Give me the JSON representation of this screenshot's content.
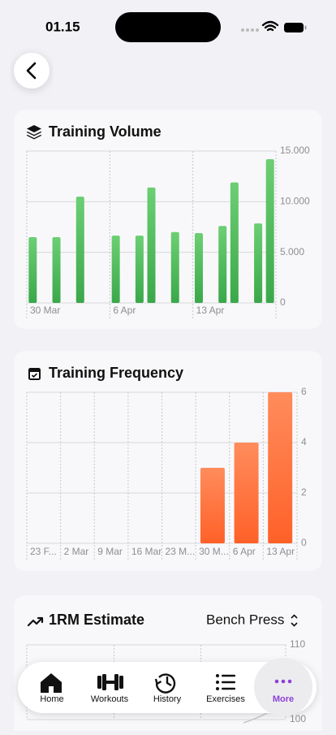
{
  "status_bar": {
    "time": "01.15"
  },
  "exercise_picker": {
    "label": "Bench Press"
  },
  "chart_data": [
    {
      "type": "bar",
      "title": "Training Volume",
      "color": "#4cb85a",
      "x": [
        "30 Mar",
        "1 Apr",
        "3 Apr",
        "6 Apr",
        "8 Apr",
        "9 Apr",
        "11 Apr",
        "13 Apr",
        "15 Apr",
        "16 Apr",
        "18 Apr",
        "19 Apr"
      ],
      "values": [
        6500,
        6500,
        10500,
        6650,
        6650,
        11400,
        7000,
        6900,
        7600,
        11900,
        7850,
        14200
      ],
      "xlim": [
        "30 Mar",
        "20 Apr"
      ],
      "xticks": [
        "30 Mar",
        "6 Apr",
        "13 Apr"
      ],
      "ylim": [
        0,
        15000
      ],
      "yticks": [
        0,
        {
          "value": 5000,
          "label": "5.000"
        },
        {
          "value": 10000,
          "label": "10.000"
        },
        {
          "value": 15000,
          "label": "15.000"
        }
      ],
      "grid": true
    },
    {
      "type": "bar",
      "title": "Training Frequency",
      "color": "#ff6a35",
      "categories": [
        "23 F...",
        "2 Mar",
        "9 Mar",
        "16 Mar",
        "23 M...",
        "30 M...",
        "6 Apr",
        "13 Apr"
      ],
      "values": [
        0,
        0,
        0,
        0,
        0,
        3,
        4,
        6
      ],
      "ylim": [
        0,
        6
      ],
      "yticks": [
        0,
        2,
        4,
        6
      ],
      "grid": true
    },
    {
      "type": "line",
      "title": "1RM Estimate",
      "ylim": [
        100,
        110
      ],
      "yticks": [
        100,
        110
      ],
      "grid": true
    }
  ],
  "tab_bar": {
    "items": [
      "Home",
      "Workouts",
      "History",
      "Exercises",
      "More"
    ],
    "active": "More"
  }
}
